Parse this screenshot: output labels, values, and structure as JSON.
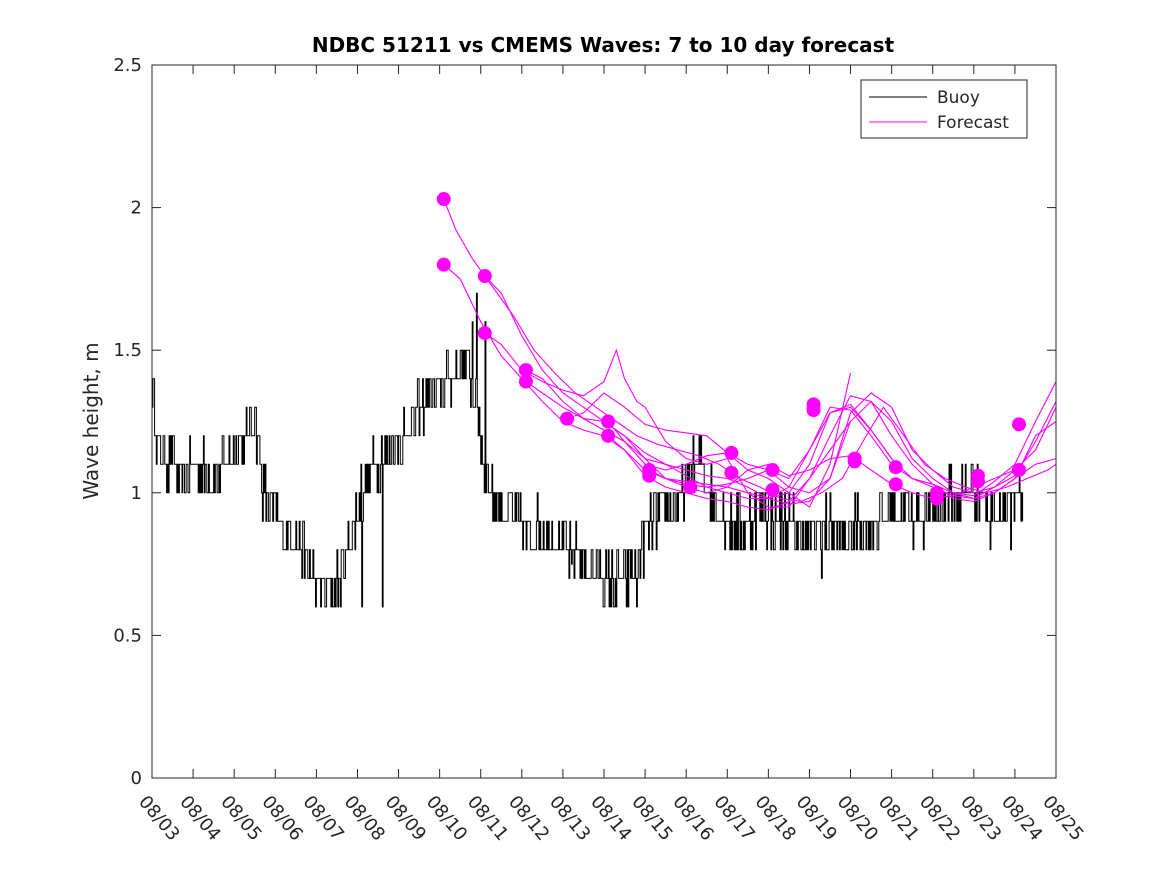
{
  "chart_data": {
    "type": "line",
    "title": "NDBC 51211 vs CMEMS Waves: 7 to 10 day forecast",
    "xlabel": "",
    "ylabel": "Wave height, m",
    "ylim": [
      0,
      2.5
    ],
    "yticks": [
      0,
      0.5,
      1,
      1.5,
      2,
      2.5
    ],
    "ytick_labels": [
      "0",
      "0.5",
      "1",
      "1.5",
      "2",
      "2.5"
    ],
    "xlim": [
      0,
      22
    ],
    "xtick_labels": [
      "08/03",
      "08/04",
      "08/05",
      "08/06",
      "08/07",
      "08/08",
      "08/09",
      "08/10",
      "08/11",
      "08/12",
      "08/13",
      "08/14",
      "08/15",
      "08/16",
      "08/17",
      "08/18",
      "08/19",
      "08/20",
      "08/21",
      "08/22",
      "08/23",
      "08/24",
      "08/25"
    ],
    "legend": {
      "position": "top-right",
      "entries": [
        {
          "label": "Buoy",
          "color": "#000000"
        },
        {
          "label": "Forecast",
          "color": "#ff00ff"
        }
      ]
    },
    "buoy": {
      "name": "Buoy",
      "color": "#000000",
      "key_x": [
        0,
        0.15,
        0.4,
        0.7,
        1.0,
        1.5,
        1.9,
        2.2,
        2.5,
        2.6,
        2.7,
        3.0,
        3.3,
        3.5,
        3.8,
        4.0,
        4.3,
        4.6,
        4.8,
        5.0,
        5.3,
        5.5,
        5.8,
        6.2,
        6.6,
        6.9,
        7.2,
        7.5,
        7.7,
        7.8,
        7.95,
        8.1,
        8.3,
        8.6,
        8.9,
        9.1,
        9.3,
        9.6,
        10.0,
        10.4,
        10.8,
        11.2,
        11.6,
        11.9,
        12.1,
        12.5,
        12.8,
        13.1,
        13.3,
        13.6,
        14.0,
        14.4,
        14.8,
        15.0,
        15.3,
        15.6,
        15.9,
        16.3,
        16.8,
        17.2,
        17.6,
        18.0,
        18.5,
        19.0,
        19.5,
        20.0,
        20.5,
        21.0,
        21.2
      ],
      "key_y": [
        1.4,
        1.15,
        1.12,
        1.05,
        1.1,
        1.05,
        1.12,
        1.18,
        1.28,
        1.15,
        1.0,
        0.92,
        0.85,
        0.82,
        0.75,
        0.68,
        0.65,
        0.7,
        0.82,
        0.95,
        1.08,
        1.12,
        1.15,
        1.22,
        1.32,
        1.35,
        1.4,
        1.45,
        1.45,
        1.35,
        1.25,
        1.05,
        0.98,
        0.95,
        0.9,
        0.85,
        0.88,
        0.85,
        0.82,
        0.78,
        0.72,
        0.68,
        0.7,
        0.8,
        0.88,
        0.95,
        0.95,
        1.05,
        1.1,
        1.0,
        0.9,
        0.88,
        0.95,
        0.92,
        0.9,
        0.88,
        0.85,
        0.88,
        0.85,
        0.88,
        0.88,
        0.95,
        0.92,
        0.95,
        0.98,
        1.02,
        0.95,
        0.95,
        0.98
      ],
      "spikes": [
        [
          7.8,
          1.6
        ],
        [
          7.9,
          1.7
        ],
        [
          8.1,
          1.6
        ],
        [
          5.1,
          0.6
        ],
        [
          5.6,
          0.6
        ],
        [
          11.8,
          0.6
        ],
        [
          16.3,
          0.7
        ],
        [
          20.4,
          0.8
        ],
        [
          20.9,
          0.8
        ],
        [
          10.2,
          0.75
        ],
        [
          9.5,
          0.8
        ],
        [
          2.5,
          1.3
        ],
        [
          0.4,
          1.0
        ]
      ]
    },
    "forecast": {
      "name": "Forecast",
      "color": "#ff00ff",
      "series": [
        {
          "x": [
            7.1,
            7.4,
            7.8,
            8.3,
            8.8,
            9.3,
            9.8,
            10.3,
            10.8,
            11.3,
            11.8,
            12.3,
            12.8,
            13.3,
            13.8,
            14.3,
            14.8,
            15.3,
            15.8,
            16.3,
            16.8,
            17.3,
            17.8,
            18.3,
            18.8,
            19.3,
            19.8,
            20.3,
            20.8,
            21.3,
            21.8,
            22.0
          ],
          "y": [
            2.03,
            1.92,
            1.82,
            1.72,
            1.62,
            1.5,
            1.42,
            1.35,
            1.3,
            1.25,
            1.2,
            1.17,
            1.15,
            1.13,
            1.1,
            1.05,
            1.02,
            0.98,
            0.97,
            1.0,
            1.05,
            1.18,
            1.3,
            1.2,
            1.1,
            1.05,
            1.02,
            1.0,
            1.02,
            1.05,
            1.08,
            1.1
          ]
        },
        {
          "x": [
            7.1,
            7.5,
            8.0,
            8.5,
            9.0,
            9.5,
            10.0,
            10.5,
            11.0,
            11.5,
            12.0,
            12.5,
            13.0,
            13.5,
            14.0,
            14.5,
            15.0,
            15.5,
            16.0,
            16.5,
            17.0,
            17.5,
            18.0,
            18.5,
            19.0,
            19.5,
            20.0,
            20.5,
            21.0,
            21.5,
            22.0
          ],
          "y": [
            1.8,
            1.75,
            1.6,
            1.48,
            1.4,
            1.32,
            1.25,
            1.22,
            1.2,
            1.15,
            1.08,
            1.05,
            1.04,
            1.03,
            1.02,
            1.0,
            0.98,
            0.96,
            0.97,
            1.05,
            1.25,
            1.32,
            1.25,
            1.12,
            1.05,
            1.0,
            0.98,
            1.0,
            1.05,
            1.2,
            1.25
          ]
        },
        {
          "x": [
            8.1,
            8.5,
            9.0,
            9.5,
            10.0,
            10.5,
            11.0,
            11.5,
            12.0,
            12.5,
            13.0,
            13.5,
            14.0,
            14.5,
            15.0,
            15.5,
            16.0,
            16.5,
            17.0,
            17.5,
            18.0,
            18.5,
            19.0,
            19.5,
            20.0,
            20.5,
            21.0,
            21.5,
            22.0
          ],
          "y": [
            1.76,
            1.7,
            1.55,
            1.43,
            1.35,
            1.3,
            1.25,
            1.2,
            1.12,
            1.05,
            1.03,
            1.02,
            1.03,
            1.05,
            1.08,
            1.02,
            1.0,
            1.05,
            1.28,
            1.35,
            1.3,
            1.15,
            1.08,
            1.02,
            1.0,
            1.02,
            1.08,
            1.15,
            1.3
          ]
        },
        {
          "x": [
            8.1,
            8.5,
            9.0,
            9.5,
            10.0,
            10.5,
            11.0,
            11.3,
            11.5,
            11.8,
            12.0,
            12.5,
            13.0,
            13.5,
            14.0,
            14.5,
            15.0,
            15.5,
            16.0,
            16.5,
            17.0,
            17.5,
            18.0,
            18.5,
            19.0,
            19.5,
            20.0,
            20.5,
            21.0,
            21.5,
            22.0
          ],
          "y": [
            1.56,
            1.52,
            1.43,
            1.39,
            1.36,
            1.34,
            1.39,
            1.5,
            1.4,
            1.32,
            1.3,
            1.18,
            1.12,
            1.1,
            1.12,
            1.0,
            0.95,
            0.95,
            1.05,
            1.2,
            1.34,
            1.32,
            1.2,
            1.1,
            1.03,
            0.98,
            0.97,
            1.0,
            1.05,
            1.1,
            1.12
          ]
        },
        {
          "x": [
            9.1,
            9.5,
            10.0,
            10.5,
            11.0,
            11.5,
            12.0,
            12.5,
            13.0,
            13.5,
            14.0,
            14.5,
            15.0,
            15.5,
            16.0,
            16.5,
            17.0,
            17.5,
            18.0,
            18.5,
            19.0,
            19.5,
            20.0,
            20.5,
            21.0,
            21.5,
            22.0
          ],
          "y": [
            1.43,
            1.4,
            1.32,
            1.26,
            1.25,
            1.2,
            1.14,
            1.1,
            1.08,
            1.06,
            1.05,
            1.02,
            0.98,
            1.0,
            1.1,
            1.28,
            1.31,
            1.22,
            1.12,
            1.05,
            1.02,
            0.99,
            0.98,
            1.02,
            1.06,
            1.18,
            1.32
          ]
        },
        {
          "x": [
            9.1,
            9.5,
            10.0,
            10.5,
            11.0,
            11.5,
            12.0,
            12.5,
            13.0,
            13.5,
            14.0,
            14.5,
            15.0,
            15.5,
            16.0,
            16.5,
            17.0,
            17.5,
            18.0,
            18.5,
            19.0,
            19.5,
            20.0,
            20.5,
            21.0,
            21.5,
            22.0
          ],
          "y": [
            1.39,
            1.35,
            1.3,
            1.26,
            1.22,
            1.18,
            1.12,
            1.1,
            1.06,
            1.02,
            1.0,
            0.98,
            0.98,
            1.02,
            1.15,
            1.3,
            1.29,
            1.2,
            1.1,
            1.05,
            1.03,
            1.0,
            0.99,
            1.04,
            1.1,
            1.25,
            1.39
          ]
        },
        {
          "x": [
            10.1,
            10.5,
            11.0,
            11.5,
            12.0,
            12.5,
            13.0,
            13.5,
            14.0,
            14.5,
            15.0,
            15.5,
            16.0,
            16.5,
            17.0
          ],
          "y": [
            1.26,
            1.28,
            1.35,
            1.3,
            1.24,
            1.22,
            1.21,
            1.2,
            1.14,
            1.08,
            1.05,
            1.0,
            0.95,
            1.1,
            1.42
          ]
        },
        {
          "x": [
            11.1,
            11.5,
            12.0,
            12.5,
            13.0,
            13.5,
            14.0,
            14.5,
            15.0,
            15.5,
            16.0,
            16.5,
            17.0,
            17.5,
            18.0
          ],
          "y": [
            1.25,
            1.18,
            1.1,
            1.08,
            1.1,
            1.13,
            1.14,
            1.1,
            1.08,
            1.05,
            1.15,
            1.28,
            1.3,
            1.22,
            1.12
          ]
        },
        {
          "x": [
            11.1,
            11.5,
            12.0,
            12.5,
            13.0,
            13.5,
            14.0,
            14.5,
            15.0,
            15.5,
            16.0,
            16.5,
            17.0
          ],
          "y": [
            1.2,
            1.15,
            1.06,
            1.02,
            1.0,
            0.98,
            0.97,
            0.95,
            0.94,
            0.97,
            1.05,
            1.15,
            1.25
          ]
        },
        {
          "x": [
            12.1,
            12.5,
            13.0,
            13.5,
            14.0,
            14.5,
            15.0,
            15.5,
            16.0,
            16.5,
            17.0,
            17.5,
            18.0,
            18.5,
            19.0,
            19.5,
            20.0,
            20.5,
            21.0
          ],
          "y": [
            1.08,
            1.05,
            1.02,
            1.0,
            1.02,
            1.08,
            1.1,
            1.06,
            1.08,
            1.12,
            1.13,
            1.08,
            1.03,
            1.0,
            0.98,
            0.99,
            1.02,
            1.05,
            1.08
          ]
        }
      ],
      "markers": [
        [
          7.1,
          2.03
        ],
        [
          7.1,
          1.8
        ],
        [
          8.1,
          1.76
        ],
        [
          8.1,
          1.56
        ],
        [
          9.1,
          1.43
        ],
        [
          9.1,
          1.39
        ],
        [
          10.1,
          1.26
        ],
        [
          11.1,
          1.25
        ],
        [
          11.1,
          1.2
        ],
        [
          12.1,
          1.08
        ],
        [
          12.1,
          1.06
        ],
        [
          13.1,
          1.02
        ],
        [
          14.1,
          1.14
        ],
        [
          14.1,
          1.07
        ],
        [
          15.1,
          1.08
        ],
        [
          15.1,
          1.01
        ],
        [
          16.1,
          1.31
        ],
        [
          16.1,
          1.29
        ],
        [
          17.1,
          1.12
        ],
        [
          17.1,
          1.11
        ],
        [
          18.1,
          1.09
        ],
        [
          18.1,
          1.03
        ],
        [
          19.1,
          1.0
        ],
        [
          19.1,
          0.98
        ],
        [
          20.1,
          1.06
        ],
        [
          20.1,
          1.04
        ],
        [
          21.1,
          1.24
        ],
        [
          21.1,
          1.08
        ]
      ]
    }
  }
}
